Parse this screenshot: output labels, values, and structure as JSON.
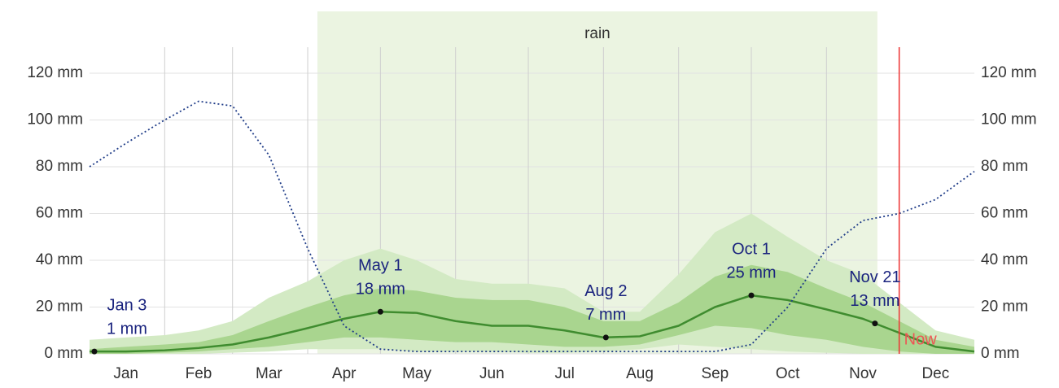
{
  "chart_data": {
    "type": "line",
    "rain_season": {
      "label": "rain",
      "x": [
        94,
        325
      ]
    },
    "now": {
      "label": "Now",
      "x": 334
    },
    "xlim": [
      0,
      365
    ],
    "xticks": [
      {
        "value": 15,
        "label": "Jan"
      },
      {
        "value": 45,
        "label": "Feb"
      },
      {
        "value": 74,
        "label": "Mar"
      },
      {
        "value": 105,
        "label": "Apr"
      },
      {
        "value": 135,
        "label": "May"
      },
      {
        "value": 166,
        "label": "Jun"
      },
      {
        "value": 196,
        "label": "Jul"
      },
      {
        "value": 227,
        "label": "Aug"
      },
      {
        "value": 258,
        "label": "Sep"
      },
      {
        "value": 288,
        "label": "Oct"
      },
      {
        "value": 319,
        "label": "Nov"
      },
      {
        "value": 349,
        "label": "Dec"
      }
    ],
    "xgrid": [
      31,
      59,
      90,
      120,
      151,
      181,
      212,
      243,
      273,
      304,
      334
    ],
    "ylim": [
      0,
      120
    ],
    "yticks": [
      {
        "value": 0,
        "label": "0 mm"
      },
      {
        "value": 20,
        "label": "20 mm"
      },
      {
        "value": 40,
        "label": "40 mm"
      },
      {
        "value": 60,
        "label": "60 mm"
      },
      {
        "value": 80,
        "label": "80 mm"
      },
      {
        "value": 100,
        "label": "100 mm"
      },
      {
        "value": 120,
        "label": "120 mm"
      }
    ],
    "grid": true,
    "x": [
      0,
      15,
      31,
      45,
      59,
      74,
      90,
      105,
      120,
      135,
      151,
      166,
      181,
      196,
      212,
      227,
      243,
      258,
      273,
      288,
      304,
      319,
      334,
      349,
      365
    ],
    "series": [
      {
        "color": "#d3eac4",
        "values": [
          6,
          7,
          8,
          10,
          14,
          24,
          31,
          40,
          45,
          40,
          32,
          30,
          30,
          28,
          18,
          18,
          34,
          52,
          60,
          50,
          40,
          34,
          22,
          10,
          6
        ]
      },
      {
        "color": "#d3eac4",
        "values": [
          0,
          0,
          0,
          0,
          0.5,
          1,
          2,
          2,
          2,
          1,
          1,
          1,
          0.5,
          0.5,
          1,
          2,
          4,
          3,
          2,
          1,
          0.5,
          0,
          0,
          0,
          0
        ]
      },
      {
        "color": "#a9d58f",
        "values": [
          2,
          3,
          4,
          5,
          8,
          14,
          20,
          25,
          28,
          27,
          24,
          23,
          23,
          20,
          14,
          14,
          22,
          33,
          38,
          35,
          28,
          22,
          14,
          6,
          3
        ]
      },
      {
        "color": "#a9d58f",
        "values": [
          0,
          0,
          0.5,
          1,
          2,
          3,
          5,
          7,
          7,
          6,
          5,
          5,
          4,
          3,
          3,
          4,
          8,
          12,
          11,
          8,
          6,
          3,
          1,
          0,
          0
        ]
      },
      {
        "color": "#3f8c2f",
        "values": [
          1,
          1,
          1.5,
          2.5,
          4,
          7,
          11,
          15,
          18,
          17.5,
          14,
          12,
          12,
          10,
          7,
          7.5,
          12,
          20,
          25,
          23,
          19,
          15,
          9,
          3,
          1
        ]
      },
      {
        "color": "#1f3c88",
        "dotted": true,
        "values": [
          80,
          90,
          100,
          108,
          106,
          85,
          45,
          12,
          2,
          1,
          1,
          1,
          1,
          1,
          1,
          1,
          1,
          1,
          4,
          20,
          45,
          57,
          60,
          66,
          78
        ]
      }
    ],
    "annotations": [
      {
        "x": 2,
        "value": 1,
        "date": "Jan 3",
        "label": "1 mm"
      },
      {
        "x": 120,
        "value": 18,
        "date": "May 1",
        "label": "18 mm"
      },
      {
        "x": 213,
        "value": 7,
        "date": "Aug 2",
        "label": "7 mm"
      },
      {
        "x": 273,
        "value": 25,
        "date": "Oct 1",
        "label": "25 mm"
      },
      {
        "x": 324,
        "value": 13,
        "date": "Nov 21",
        "label": "13 mm"
      }
    ]
  }
}
